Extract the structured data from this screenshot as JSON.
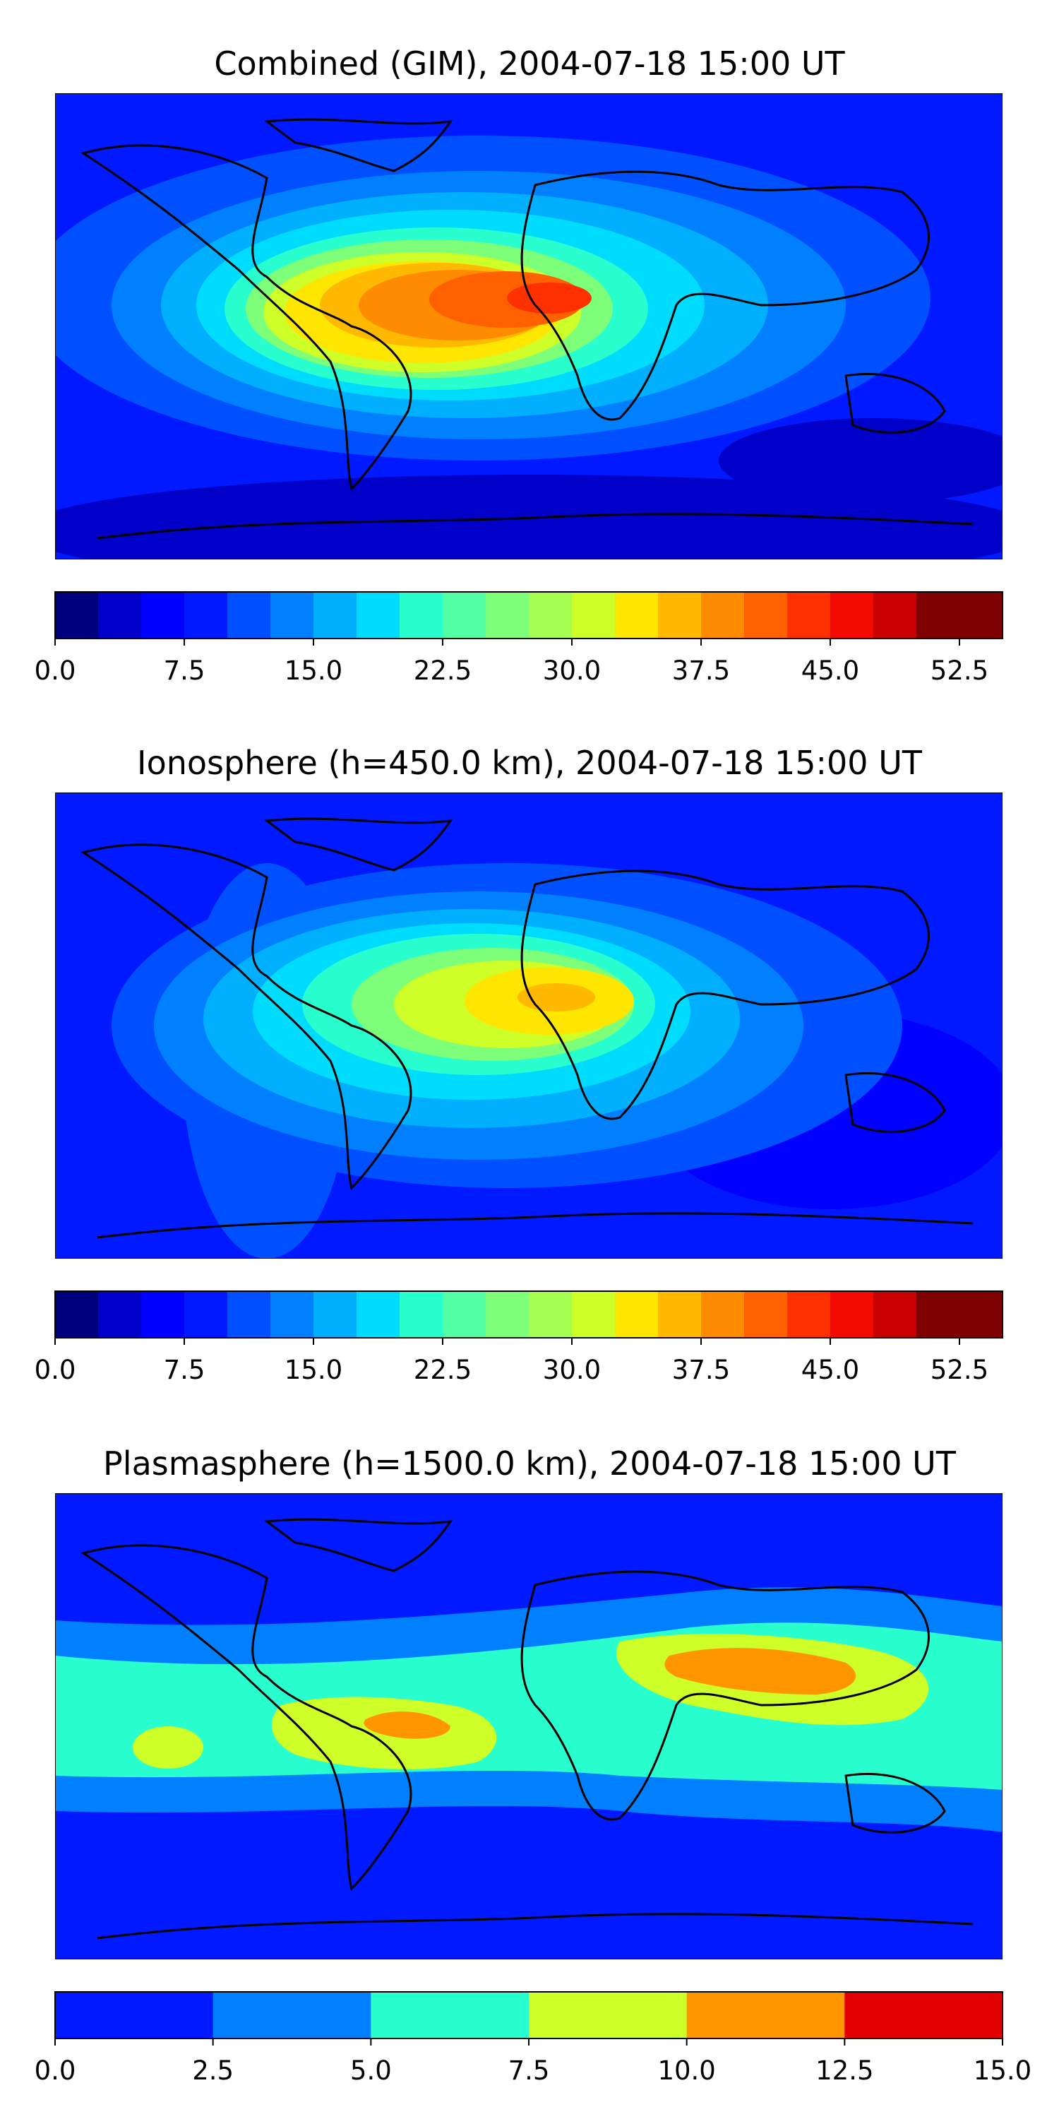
{
  "figure": {
    "panels": [
      {
        "id": "combined",
        "title": "Combined (GIM), 2004-07-18 15:00 UT",
        "colorbar": {
          "min": 0.0,
          "max": 55.0,
          "levels": [
            0,
            2.5,
            5,
            7.5,
            10,
            12.5,
            15,
            17.5,
            20,
            22.5,
            25,
            27.5,
            30,
            32.5,
            35,
            37.5,
            40,
            42.5,
            45,
            47.5,
            50,
            52.5,
            55
          ],
          "colors": [
            "#00007f",
            "#0000c8",
            "#0000ff",
            "#0019ff",
            "#0050ff",
            "#0080ff",
            "#00b0ff",
            "#00dcfe",
            "#29ffce",
            "#52ffa4",
            "#7dff7a",
            "#a4ff52",
            "#ceff29",
            "#fee600",
            "#ffb900",
            "#ff8c00",
            "#ff6000",
            "#ff3000",
            "#f20a00",
            "#c80000",
            "#7f0000",
            "#7f0000"
          ],
          "tick_labels": [
            "0.0",
            "7.5",
            "15.0",
            "22.5",
            "30.0",
            "37.5",
            "45.0",
            "52.5"
          ],
          "tick_values": [
            0.0,
            7.5,
            15.0,
            22.5,
            30.0,
            37.5,
            45.0,
            52.5
          ]
        }
      },
      {
        "id": "ionosphere",
        "title": "Ionosphere  (h=450.0 km), 2004-07-18 15:00 UT",
        "colorbar": {
          "min": 0.0,
          "max": 55.0,
          "levels": [
            0,
            2.5,
            5,
            7.5,
            10,
            12.5,
            15,
            17.5,
            20,
            22.5,
            25,
            27.5,
            30,
            32.5,
            35,
            37.5,
            40,
            42.5,
            45,
            47.5,
            50,
            52.5,
            55
          ],
          "colors": [
            "#00007f",
            "#0000c8",
            "#0000ff",
            "#0019ff",
            "#0050ff",
            "#0080ff",
            "#00b0ff",
            "#00dcfe",
            "#29ffce",
            "#52ffa4",
            "#7dff7a",
            "#a4ff52",
            "#ceff29",
            "#fee600",
            "#ffb900",
            "#ff8c00",
            "#ff6000",
            "#ff3000",
            "#f20a00",
            "#c80000",
            "#7f0000",
            "#7f0000"
          ],
          "tick_labels": [
            "0.0",
            "7.5",
            "15.0",
            "22.5",
            "30.0",
            "37.5",
            "45.0",
            "52.5"
          ],
          "tick_values": [
            0.0,
            7.5,
            15.0,
            22.5,
            30.0,
            37.5,
            45.0,
            52.5
          ]
        }
      },
      {
        "id": "plasmasphere",
        "title": "Plasmasphere (h=1500.0 km), 2004-07-18 15:00 UT",
        "colorbar": {
          "min": 0.0,
          "max": 15.0,
          "levels": [
            0,
            2.5,
            5,
            7.5,
            10,
            12.5,
            15
          ],
          "colors": [
            "#0019ff",
            "#0080ff",
            "#29ffce",
            "#ceff29",
            "#ff9600",
            "#e00000"
          ],
          "tick_labels": [
            "0.0",
            "2.5",
            "5.0",
            "7.5",
            "10.0",
            "12.5",
            "15.0"
          ],
          "tick_values": [
            0.0,
            2.5,
            5.0,
            7.5,
            10.0,
            12.5,
            15.0
          ]
        }
      }
    ]
  }
}
